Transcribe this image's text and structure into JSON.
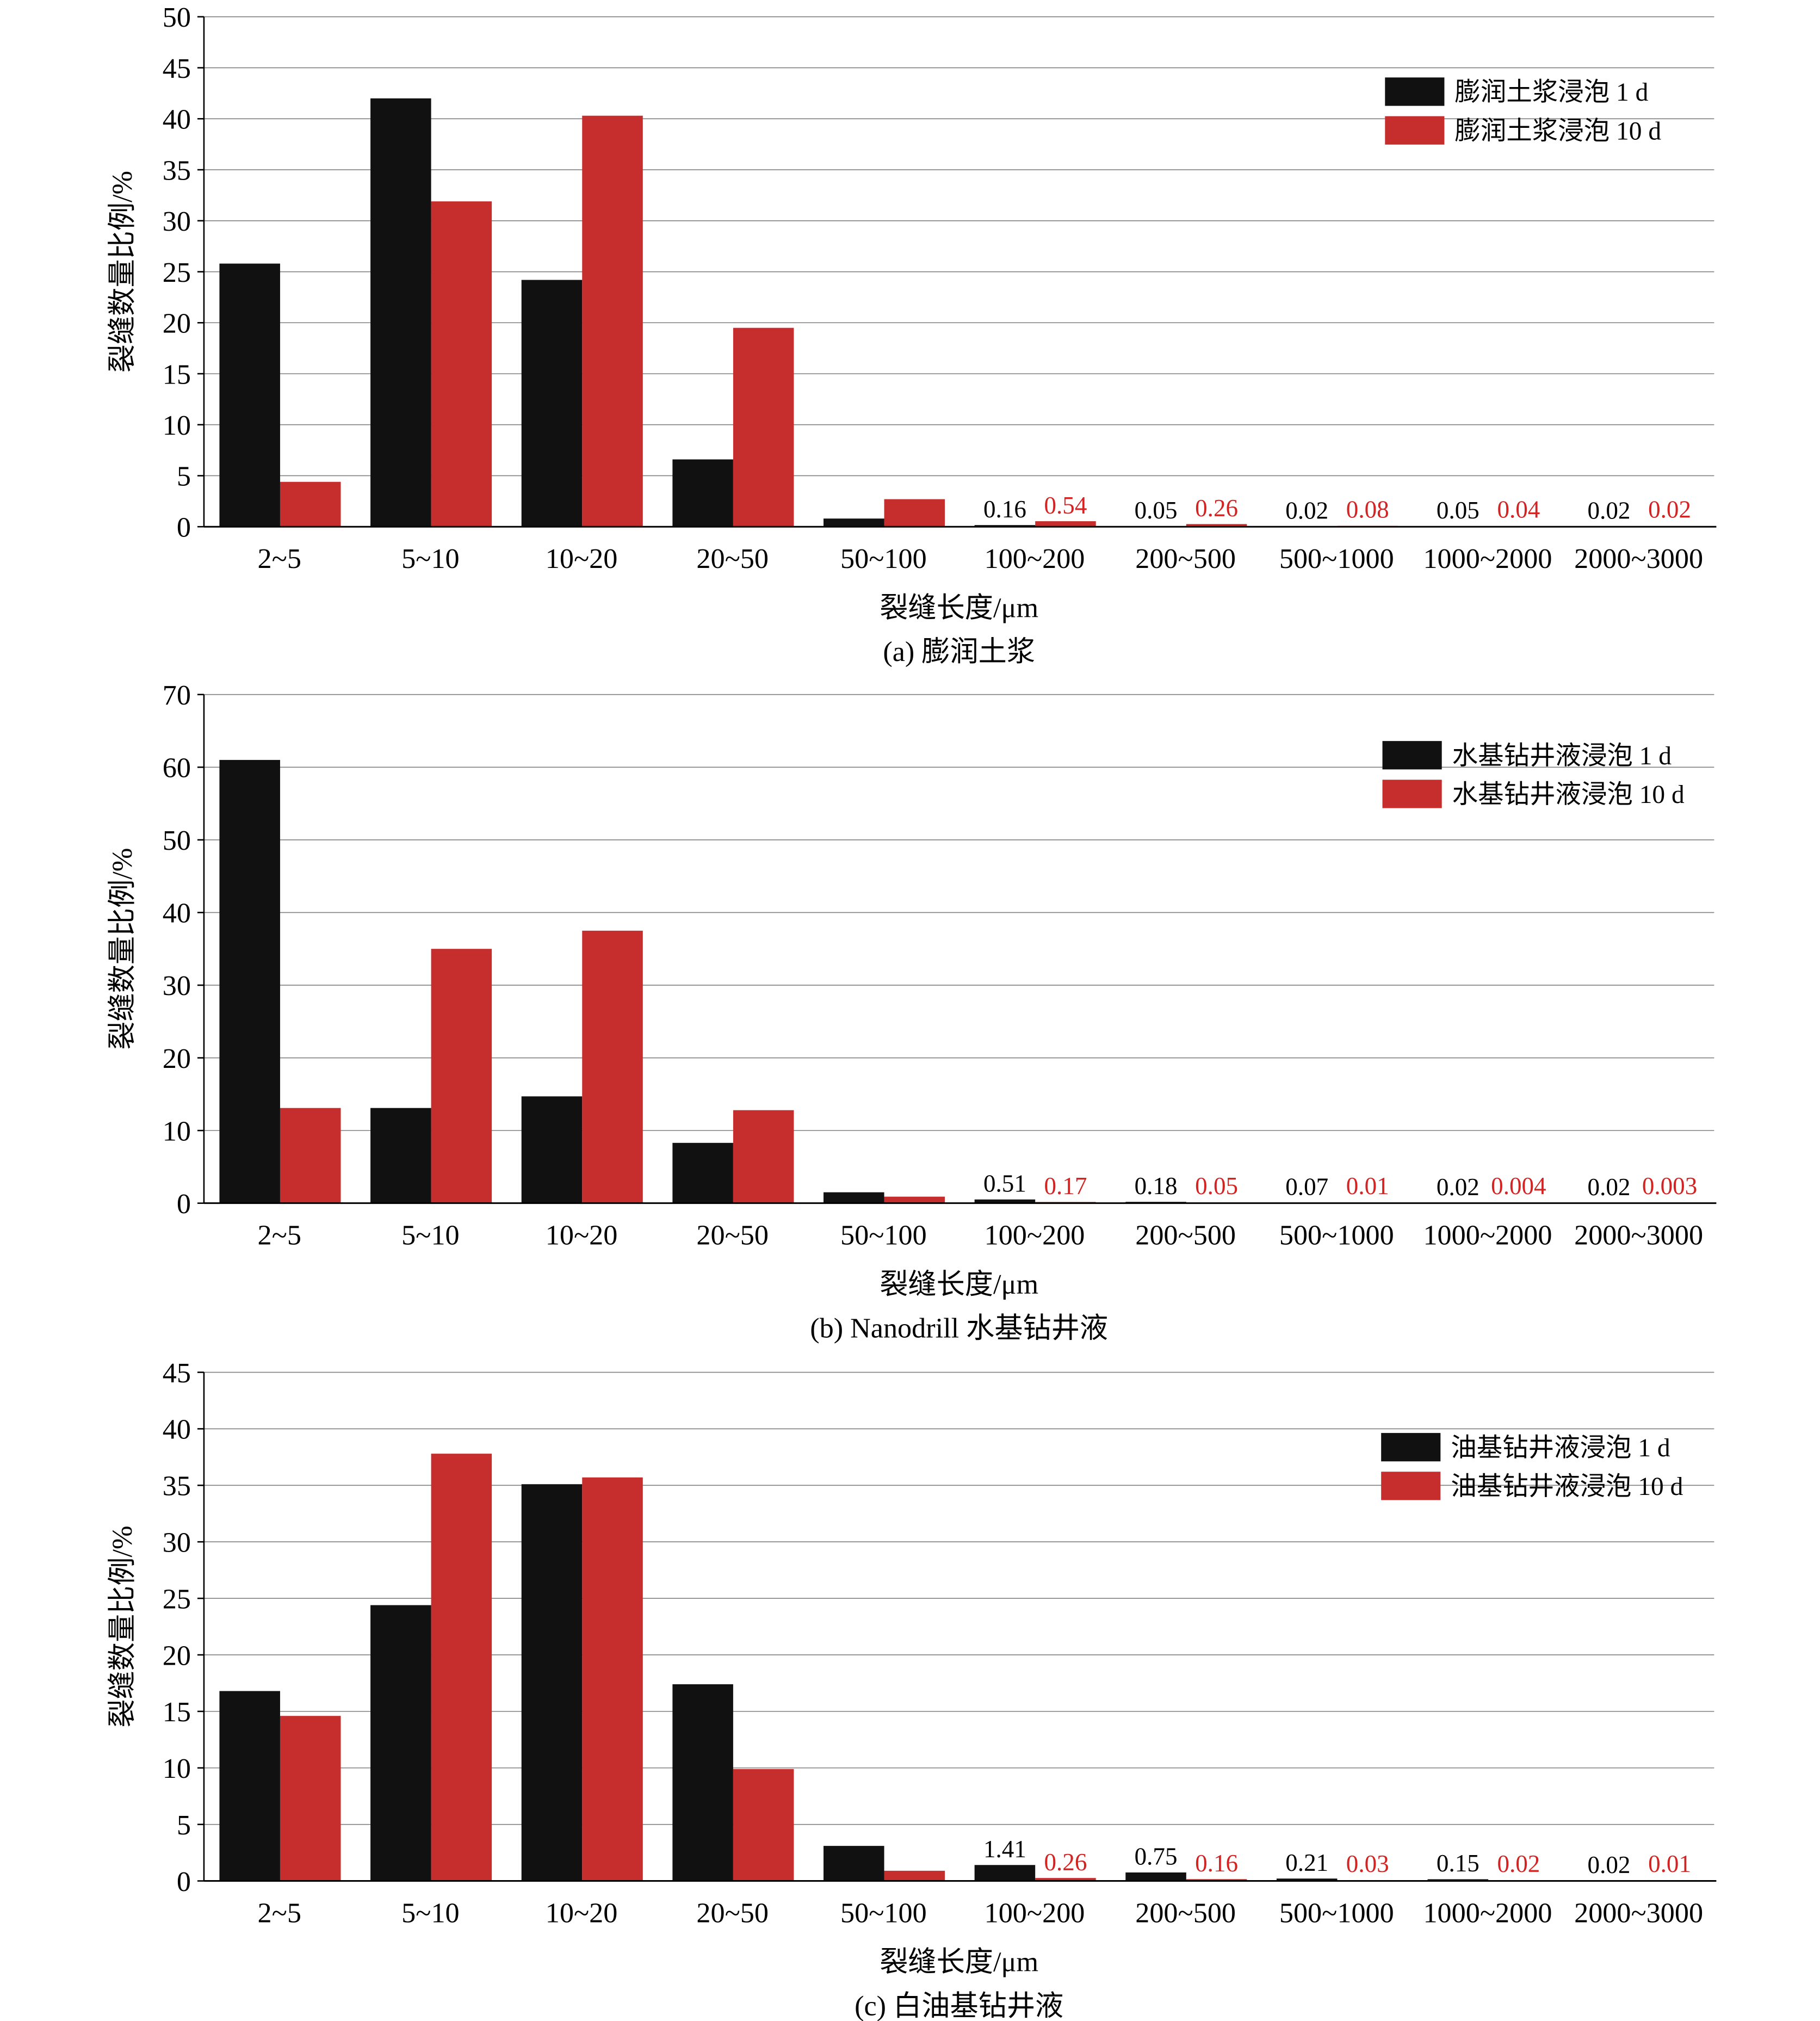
{
  "colors": {
    "series1": "#111111",
    "series2": "#c62d2d",
    "axis": "#000000",
    "grid": "#808080",
    "label1": "#000000",
    "label2": "#d32424"
  },
  "chart_data": [
    {
      "type": "bar",
      "ylabel": "裂缝数量比例/%",
      "xlabel": "裂缝长度/μm",
      "caption": "(a) 膨润土浆",
      "ylim": [
        0,
        50
      ],
      "yticks": [
        0,
        5,
        10,
        15,
        20,
        25,
        30,
        35,
        40,
        45,
        50
      ],
      "grid": true,
      "legend": "top-right",
      "categories": [
        "2~5",
        "5~10",
        "10~20",
        "20~50",
        "50~100",
        "100~200",
        "200~500",
        "500~1000",
        "1000~2000",
        "2000~3000"
      ],
      "series": [
        {
          "name": "膨润土浆浸泡 1 d",
          "values": [
            25.8,
            42,
            24.2,
            6.6,
            0.8,
            0.16,
            0.05,
            0.02,
            0.05,
            0.02
          ]
        },
        {
          "name": "膨润土浆浸泡 10 d",
          "values": [
            4.4,
            31.9,
            40.3,
            19.5,
            2.7,
            0.54,
            0.26,
            0.08,
            0.04,
            0.02
          ]
        }
      ],
      "data_labels": {
        "from_index": 5,
        "series1": [
          "0.16",
          "0.05",
          "0.02",
          "0.05",
          "0.02"
        ],
        "series2": [
          "0.54",
          "0.26",
          "0.08",
          "0.04",
          "0.02"
        ]
      }
    },
    {
      "type": "bar",
      "ylabel": "裂缝数量比例/%",
      "xlabel": "裂缝长度/μm",
      "caption": "(b) Nanodrill 水基钻井液",
      "ylim": [
        0,
        70
      ],
      "yticks": [
        0,
        10,
        20,
        30,
        40,
        50,
        60,
        70
      ],
      "grid": true,
      "legend": "top-right",
      "categories": [
        "2~5",
        "5~10",
        "10~20",
        "20~50",
        "50~100",
        "100~200",
        "200~500",
        "500~1000",
        "1000~2000",
        "2000~3000"
      ],
      "series": [
        {
          "name": "水基钻井液浸泡 1 d",
          "values": [
            61,
            13.1,
            14.7,
            8.3,
            1.5,
            0.51,
            0.18,
            0.07,
            0.02,
            0.02
          ]
        },
        {
          "name": "水基钻井液浸泡 10 d",
          "values": [
            13.1,
            35,
            37.5,
            12.8,
            0.9,
            0.17,
            0.05,
            0.01,
            0.004,
            0.003
          ]
        }
      ],
      "data_labels": {
        "from_index": 5,
        "series1": [
          "0.51",
          "0.18",
          "0.07",
          "0.02",
          "0.02"
        ],
        "series2": [
          "0.17",
          "0.05",
          "0.01",
          "0.004",
          "0.003"
        ]
      }
    },
    {
      "type": "bar",
      "ylabel": "裂缝数量比例/%",
      "xlabel": "裂缝长度/μm",
      "caption": "(c) 白油基钻井液",
      "ylim": [
        0,
        45
      ],
      "yticks": [
        0,
        5,
        10,
        15,
        20,
        25,
        30,
        35,
        40,
        45
      ],
      "grid": true,
      "legend": "top-right",
      "categories": [
        "2~5",
        "5~10",
        "10~20",
        "20~50",
        "50~100",
        "100~200",
        "200~500",
        "500~1000",
        "1000~2000",
        "2000~3000"
      ],
      "series": [
        {
          "name": "油基钻井液浸泡 1 d",
          "values": [
            16.8,
            24.4,
            35.1,
            17.4,
            3.1,
            1.41,
            0.75,
            0.21,
            0.15,
            0.02
          ]
        },
        {
          "name": "油基钻井液浸泡 10 d",
          "values": [
            14.6,
            37.8,
            35.7,
            9.9,
            0.9,
            0.26,
            0.16,
            0.03,
            0.02,
            0.01
          ]
        }
      ],
      "data_labels": {
        "from_index": 5,
        "series1": [
          "1.41",
          "0.75",
          "0.21",
          "0.15",
          "0.02"
        ],
        "series2": [
          "0.26",
          "0.16",
          "0.03",
          "0.02",
          "0.01"
        ]
      }
    }
  ]
}
